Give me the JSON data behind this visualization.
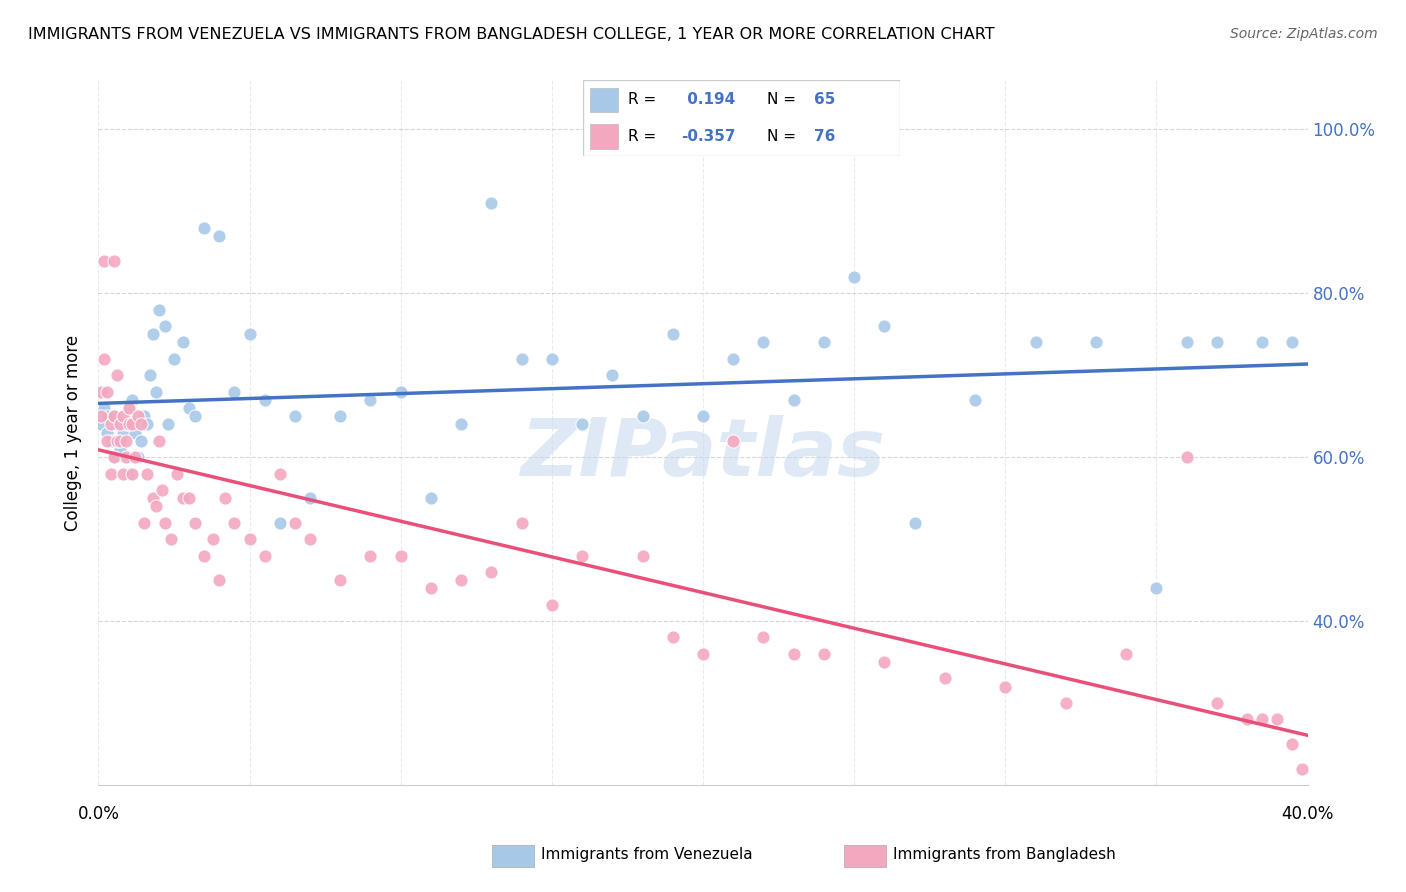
{
  "title": "IMMIGRANTS FROM VENEZUELA VS IMMIGRANTS FROM BANGLADESH COLLEGE, 1 YEAR OR MORE CORRELATION CHART",
  "source": "Source: ZipAtlas.com",
  "ylabel": "College, 1 year or more",
  "legend_label1": "Immigrants from Venezuela",
  "legend_label2": "Immigrants from Bangladesh",
  "R1": 0.194,
  "N1": 65,
  "R2": -0.357,
  "N2": 76,
  "color_venezuela": "#a8c8e8",
  "color_bangladesh": "#f4a8c0",
  "line_color_venezuela": "#4472C4",
  "line_color_bangladesh": "#e8507a",
  "watermark": "ZIPatlas",
  "xlim": [
    0.0,
    0.4
  ],
  "ylim": [
    0.2,
    1.06
  ],
  "yticks": [
    0.4,
    0.6,
    0.8,
    1.0
  ],
  "ytick_labels": [
    "40.0%",
    "60.0%",
    "80.0%",
    "100.0%"
  ],
  "xtick_left_label": "0.0%",
  "xtick_right_label": "40.0%",
  "venezuela_x": [
    0.001,
    0.002,
    0.003,
    0.003,
    0.004,
    0.005,
    0.005,
    0.006,
    0.007,
    0.008,
    0.009,
    0.01,
    0.01,
    0.011,
    0.012,
    0.013,
    0.014,
    0.015,
    0.016,
    0.017,
    0.018,
    0.019,
    0.02,
    0.022,
    0.023,
    0.025,
    0.028,
    0.03,
    0.032,
    0.035,
    0.04,
    0.045,
    0.05,
    0.055,
    0.06,
    0.065,
    0.07,
    0.08,
    0.09,
    0.1,
    0.11,
    0.12,
    0.13,
    0.14,
    0.15,
    0.16,
    0.17,
    0.18,
    0.19,
    0.2,
    0.21,
    0.22,
    0.23,
    0.24,
    0.25,
    0.26,
    0.27,
    0.29,
    0.31,
    0.33,
    0.35,
    0.36,
    0.37,
    0.385,
    0.395
  ],
  "venezuela_y": [
    0.64,
    0.66,
    0.63,
    0.65,
    0.62,
    0.6,
    0.65,
    0.64,
    0.61,
    0.63,
    0.64,
    0.58,
    0.66,
    0.67,
    0.63,
    0.6,
    0.62,
    0.65,
    0.64,
    0.7,
    0.75,
    0.68,
    0.78,
    0.76,
    0.64,
    0.72,
    0.74,
    0.66,
    0.65,
    0.88,
    0.87,
    0.68,
    0.75,
    0.67,
    0.52,
    0.65,
    0.55,
    0.65,
    0.67,
    0.68,
    0.55,
    0.64,
    0.91,
    0.72,
    0.72,
    0.64,
    0.7,
    0.65,
    0.75,
    0.65,
    0.72,
    0.74,
    0.67,
    0.74,
    0.82,
    0.76,
    0.52,
    0.67,
    0.74,
    0.74,
    0.44,
    0.74,
    0.74,
    0.74,
    0.74
  ],
  "bangladesh_x": [
    0.001,
    0.001,
    0.002,
    0.002,
    0.003,
    0.003,
    0.004,
    0.004,
    0.005,
    0.005,
    0.005,
    0.006,
    0.006,
    0.007,
    0.007,
    0.008,
    0.008,
    0.009,
    0.009,
    0.01,
    0.01,
    0.011,
    0.011,
    0.012,
    0.013,
    0.014,
    0.015,
    0.016,
    0.018,
    0.019,
    0.02,
    0.021,
    0.022,
    0.024,
    0.026,
    0.028,
    0.03,
    0.032,
    0.035,
    0.038,
    0.04,
    0.042,
    0.045,
    0.05,
    0.055,
    0.06,
    0.065,
    0.07,
    0.08,
    0.09,
    0.1,
    0.11,
    0.12,
    0.13,
    0.14,
    0.15,
    0.16,
    0.18,
    0.19,
    0.2,
    0.21,
    0.22,
    0.23,
    0.24,
    0.26,
    0.28,
    0.3,
    0.32,
    0.34,
    0.36,
    0.37,
    0.38,
    0.385,
    0.39,
    0.395,
    0.398
  ],
  "bangladesh_y": [
    0.68,
    0.65,
    0.84,
    0.72,
    0.62,
    0.68,
    0.64,
    0.58,
    0.6,
    0.65,
    0.84,
    0.62,
    0.7,
    0.64,
    0.62,
    0.58,
    0.65,
    0.6,
    0.62,
    0.64,
    0.66,
    0.58,
    0.64,
    0.6,
    0.65,
    0.64,
    0.52,
    0.58,
    0.55,
    0.54,
    0.62,
    0.56,
    0.52,
    0.5,
    0.58,
    0.55,
    0.55,
    0.52,
    0.48,
    0.5,
    0.45,
    0.55,
    0.52,
    0.5,
    0.48,
    0.58,
    0.52,
    0.5,
    0.45,
    0.48,
    0.48,
    0.44,
    0.45,
    0.46,
    0.52,
    0.42,
    0.48,
    0.48,
    0.38,
    0.36,
    0.62,
    0.38,
    0.36,
    0.36,
    0.35,
    0.33,
    0.32,
    0.3,
    0.36,
    0.6,
    0.3,
    0.28,
    0.28,
    0.28,
    0.25,
    0.22
  ]
}
